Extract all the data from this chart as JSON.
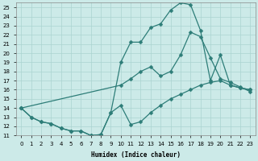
{
  "xlabel": "Humidex (Indice chaleur)",
  "xlim": [
    -0.5,
    23.5
  ],
  "ylim": [
    11,
    25.5
  ],
  "yticks": [
    11,
    12,
    13,
    14,
    15,
    16,
    17,
    18,
    19,
    20,
    21,
    22,
    23,
    24,
    25
  ],
  "xticks": [
    0,
    1,
    2,
    3,
    4,
    5,
    6,
    7,
    8,
    9,
    10,
    11,
    12,
    13,
    14,
    15,
    16,
    17,
    18,
    19,
    20,
    21,
    22,
    23
  ],
  "bg_color": "#cceae8",
  "grid_color": "#aad4d0",
  "line_color": "#2d7d78",
  "line1_x": [
    0,
    1,
    2,
    3,
    4,
    5,
    6,
    7,
    8,
    9,
    10,
    11,
    12,
    13,
    14,
    15,
    16,
    17,
    18,
    19,
    20,
    21,
    22,
    23
  ],
  "line1_y": [
    14.0,
    13.0,
    12.5,
    12.3,
    11.8,
    11.5,
    11.5,
    11.0,
    11.1,
    13.5,
    14.3,
    12.2,
    12.5,
    13.5,
    14.3,
    15.0,
    15.5,
    16.0,
    16.5,
    16.8,
    17.0,
    16.5,
    16.2,
    16.0
  ],
  "line2_x": [
    0,
    1,
    2,
    3,
    4,
    5,
    6,
    7,
    8,
    9,
    10,
    11,
    12,
    13,
    14,
    15,
    16,
    17,
    18,
    19,
    20,
    21,
    22,
    23
  ],
  "line2_y": [
    14.0,
    13.0,
    12.5,
    12.3,
    11.8,
    11.5,
    11.5,
    11.0,
    11.1,
    13.5,
    19.0,
    21.2,
    21.2,
    22.8,
    23.2,
    24.7,
    25.5,
    25.3,
    22.5,
    17.0,
    19.8,
    16.5,
    16.2,
    16.0
  ],
  "line3_x": [
    0,
    10,
    11,
    12,
    13,
    14,
    15,
    16,
    17,
    18,
    19,
    20,
    21,
    22,
    23
  ],
  "line3_y": [
    14.0,
    16.5,
    17.2,
    18.0,
    18.5,
    17.5,
    18.0,
    19.8,
    22.3,
    21.8,
    19.5,
    17.2,
    16.8,
    16.3,
    15.8
  ],
  "marker": "D",
  "markersize": 2.5,
  "linewidth": 0.9
}
